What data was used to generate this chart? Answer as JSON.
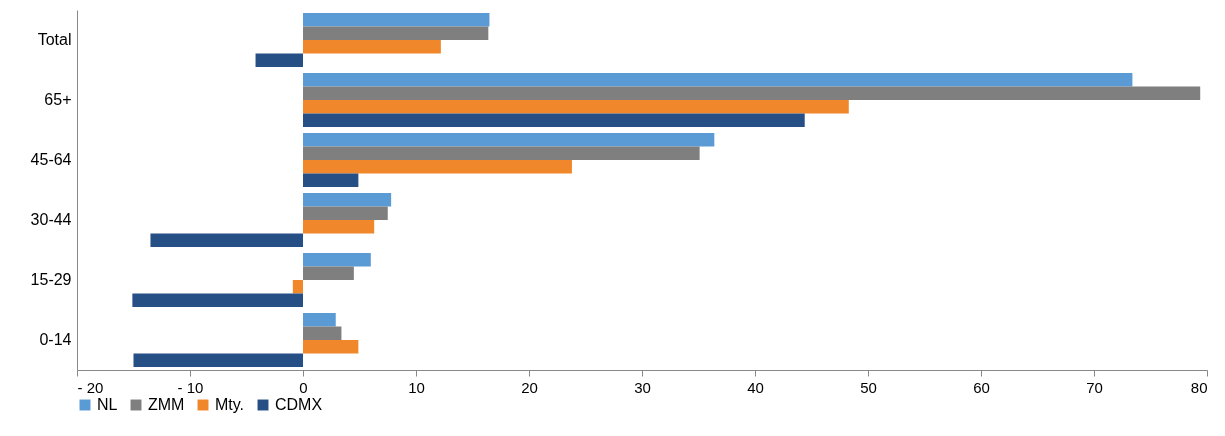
{
  "chart_data": {
    "type": "bar",
    "orientation": "horizontal",
    "categories": [
      "Total",
      "65+",
      "45-64",
      "30-44",
      "15-29",
      "0-14"
    ],
    "series": [
      {
        "name": "NL",
        "color": "#5b9bd5",
        "values": [
          16.5,
          73.4,
          36.4,
          7.8,
          6.0,
          2.9
        ]
      },
      {
        "name": "ZMM",
        "color": "#7f7f7f",
        "values": [
          16.4,
          79.4,
          35.1,
          7.5,
          4.5,
          3.4
        ]
      },
      {
        "name": "Mty.",
        "color": "#f0882b",
        "values": [
          12.2,
          48.3,
          23.8,
          6.3,
          -0.9,
          4.9
        ]
      },
      {
        "name": "CDMX",
        "color": "#264f85",
        "values": [
          -4.2,
          44.4,
          4.9,
          -13.5,
          -15.1,
          -15.0
        ]
      }
    ],
    "xlim": [
      -20,
      80
    ],
    "xticks": [
      {
        "value": -20,
        "label": "- 20"
      },
      {
        "value": -10,
        "label": "- 10"
      },
      0,
      10,
      20,
      30,
      40,
      50,
      60,
      70,
      80
    ],
    "grid": false,
    "legend": "bottom"
  }
}
